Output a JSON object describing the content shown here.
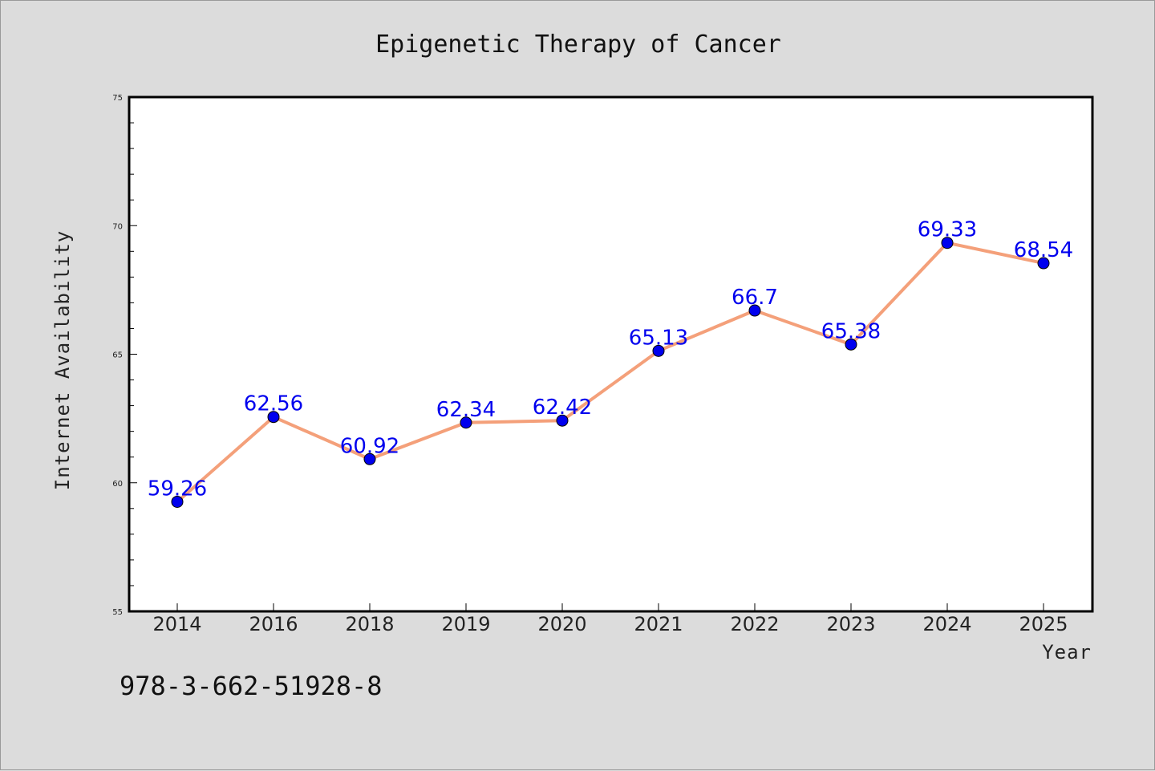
{
  "chart_data": {
    "type": "line",
    "title": "Epigenetic Therapy of Cancer",
    "xlabel": "Year",
    "ylabel": "Internet Availability",
    "categories": [
      "2014",
      "2016",
      "2018",
      "2019",
      "2020",
      "2021",
      "2022",
      "2023",
      "2024",
      "2025"
    ],
    "series": [
      {
        "values": [
          59.26,
          62.56,
          60.92,
          62.34,
          62.42,
          65.13,
          66.7,
          65.38,
          69.33,
          68.54
        ],
        "data_labels": [
          "59.26",
          "62.56",
          "60.92",
          "62.34",
          "62.42",
          "65.13",
          "66.7",
          "65.38",
          "69.33",
          "68.54"
        ],
        "line_color": "#f4a07a",
        "marker_color": "#0000ee"
      }
    ],
    "ylim": [
      55,
      75
    ],
    "yticks": [
      "55",
      "60",
      "65",
      "70",
      "75"
    ],
    "grid": false,
    "legend": "none",
    "label_color": "#0000ee"
  },
  "footer": {
    "isbn": "978-3-662-51928-8"
  },
  "colors": {
    "background": "#dcdcdc",
    "plot_background": "#ffffff"
  }
}
